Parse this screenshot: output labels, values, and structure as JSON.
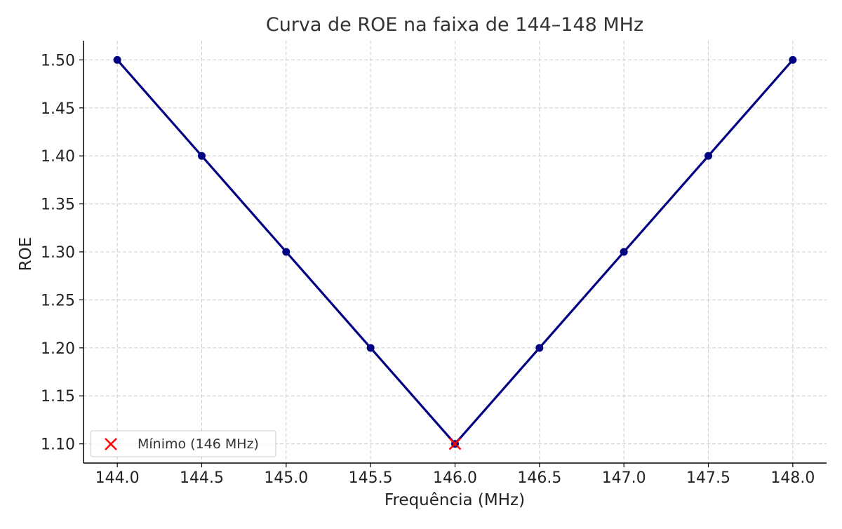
{
  "chart_data": {
    "type": "line",
    "title": "Curva de ROE na faixa de 144–148 MHz",
    "xlabel": "Frequência (MHz)",
    "ylabel": "ROE",
    "xlim": [
      143.8,
      148.2
    ],
    "ylim": [
      1.08,
      1.52
    ],
    "xticks": [
      144.0,
      144.5,
      145.0,
      145.5,
      146.0,
      146.5,
      147.0,
      147.5,
      148.0
    ],
    "xtick_labels": [
      "144.0",
      "144.5",
      "145.0",
      "145.5",
      "146.0",
      "146.5",
      "147.0",
      "147.5",
      "148.0"
    ],
    "yticks": [
      1.1,
      1.15,
      1.2,
      1.25,
      1.3,
      1.35,
      1.4,
      1.45,
      1.5
    ],
    "ytick_labels": [
      "1.10",
      "1.15",
      "1.20",
      "1.25",
      "1.30",
      "1.35",
      "1.40",
      "1.45",
      "1.50"
    ],
    "grid": true,
    "legend_position": "bottom-left",
    "series": [
      {
        "x": [
          144.0,
          144.5,
          145.0,
          145.5,
          146.0,
          146.5,
          147.0,
          147.5,
          148.0
        ],
        "y": [
          1.5,
          1.4,
          1.3,
          1.2,
          1.1,
          1.2,
          1.3,
          1.4,
          1.5
        ],
        "color": "#000080",
        "marker": "circle"
      }
    ],
    "annotations": [
      {
        "name": "Mínimo (146 MHz)",
        "x": 146.0,
        "y": 1.1,
        "color": "#ff0000",
        "marker": "x"
      }
    ]
  }
}
